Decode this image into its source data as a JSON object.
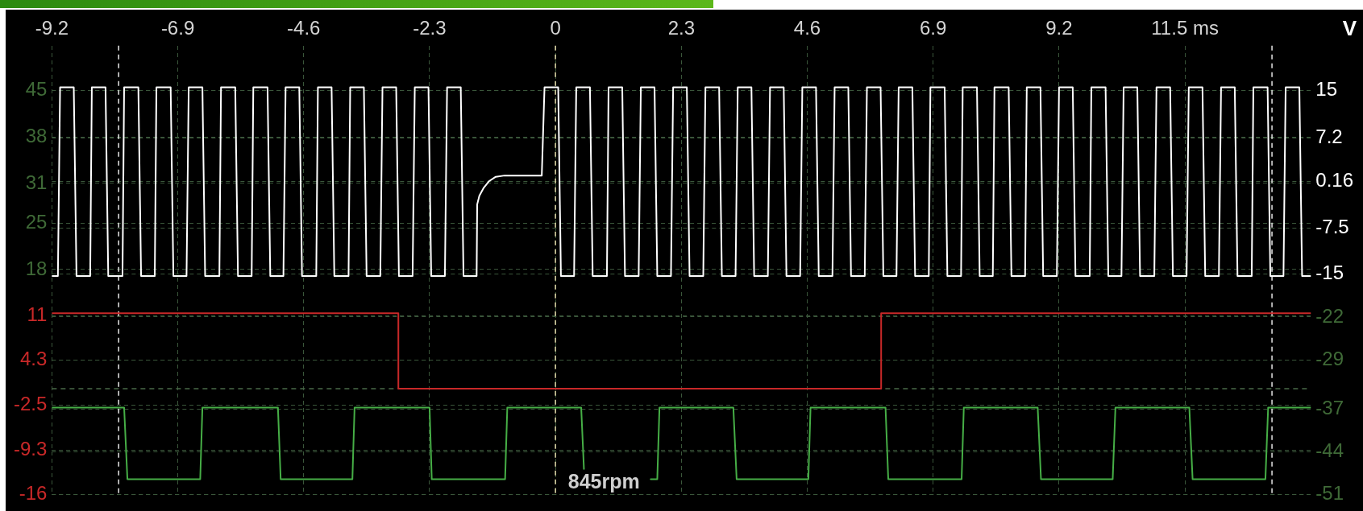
{
  "chart_data": {
    "type": "line",
    "xlim": [
      -9.2,
      13.8
    ],
    "xticks": [
      -9.2,
      -6.9,
      -4.6,
      -2.3,
      0,
      2.3,
      4.6,
      6.9,
      9.2,
      {
        "value": 11.5,
        "label": "11.5 ms"
      }
    ],
    "ylim": [
      -16,
      51.8
    ],
    "yticks": [
      -16,
      -9.3,
      -2.5,
      4.3,
      11,
      18,
      25,
      31,
      38,
      45
    ],
    "y2lim": [
      -51,
      22.3
    ],
    "y2ticks": [
      -51,
      -44,
      -37,
      -29,
      -22,
      -15,
      -7.5,
      0.16,
      7.2,
      15
    ],
    "y2label": "V",
    "grid": true,
    "ref_lines": [
      {
        "axis": "x",
        "value": -7.98,
        "color": "#e6e6e6",
        "line_style": "dashed"
      },
      {
        "axis": "x",
        "value": 0,
        "color": "#e0d8a8",
        "line_style": "dashed"
      },
      {
        "axis": "x",
        "value": 13.09,
        "color": "#e6e6e6",
        "line_style": "dashed"
      },
      {
        "axis": "y",
        "value": 0,
        "color": "#4a6a48",
        "line_style": "dashed"
      }
    ],
    "annotations": [
      "845rpm"
    ],
    "series": [
      {
        "color": "#ffffff",
        "axis": "y2",
        "x": [
          -9.2,
          -9.09,
          -9.05,
          -8.8,
          -8.75,
          -8.5,
          -8.47,
          -8.22,
          -8.17,
          -7.91,
          -7.88,
          -7.62,
          -7.57,
          -7.32,
          -7.29,
          -7.03,
          -6.98,
          -6.74,
          -6.7,
          -6.45,
          -6.4,
          -6.14,
          -6.11,
          -5.85,
          -5.8,
          -5.55,
          -5.52,
          -5.26,
          -5.21,
          -4.97,
          -4.93,
          -4.68,
          -4.63,
          -4.37,
          -4.34,
          -4.09,
          -4.04,
          -3.78,
          -3.75,
          -3.5,
          -3.45,
          -3.2,
          -3.16,
          -2.91,
          -2.86,
          -2.61,
          -2.57,
          -2.32,
          -2.27,
          -2.02,
          -1.98,
          -1.73,
          -1.68,
          -1.44,
          -1.43,
          -1.39,
          -1.31,
          -1.21,
          -1.09,
          -0.93,
          -0.25,
          -0.2,
          0.05,
          0.1,
          0.34,
          0.38,
          0.63,
          0.68,
          0.94,
          0.97,
          1.22,
          1.27,
          1.52,
          1.56,
          1.81,
          1.86,
          2.11,
          2.15,
          2.4,
          2.45,
          2.7,
          2.74,
          2.99,
          3.04,
          3.29,
          3.33,
          3.58,
          3.63,
          3.88,
          3.92,
          4.17,
          4.22,
          4.47,
          4.51,
          4.76,
          4.81,
          5.06,
          5.1,
          5.35,
          5.4,
          5.65,
          5.69,
          5.94,
          5.99,
          6.23,
          6.27,
          6.52,
          6.57,
          6.82,
          6.85,
          7.11,
          7.16,
          7.41,
          7.44,
          7.7,
          7.75,
          7.99,
          8.02,
          8.28,
          8.33,
          8.58,
          8.61,
          8.86,
          8.91,
          9.16,
          9.2,
          9.45,
          9.5,
          9.76,
          9.79,
          10.05,
          10.1,
          10.34,
          10.38,
          10.63,
          10.68,
          10.94,
          10.98,
          11.23,
          11.28,
          11.53,
          11.57,
          11.82,
          11.87,
          12.12,
          12.16,
          12.41,
          12.46,
          12.72,
          12.75,
          13.01,
          13.06,
          13.3,
          13.34,
          13.59,
          13.64,
          13.8
        ],
        "values": [
          -15.3,
          -15.3,
          15.5,
          15.5,
          -15.3,
          -15.3,
          15.5,
          15.5,
          -15.3,
          -15.3,
          15.5,
          15.5,
          -15.3,
          -15.3,
          15.5,
          15.5,
          -15.3,
          -15.3,
          15.5,
          15.5,
          -15.3,
          -15.3,
          15.5,
          15.5,
          -15.3,
          -15.3,
          15.5,
          15.5,
          -15.3,
          -15.3,
          15.5,
          15.5,
          -15.3,
          -15.3,
          15.5,
          15.5,
          -15.3,
          -15.3,
          15.5,
          15.5,
          -15.3,
          -15.3,
          15.5,
          15.5,
          -15.3,
          -15.3,
          15.5,
          15.5,
          -15.3,
          -15.3,
          15.5,
          15.5,
          -15.3,
          -15.3,
          -3.6,
          -2.2,
          -0.9,
          0.2,
          0.9,
          1.1,
          1.1,
          15.5,
          15.5,
          -15.3,
          -15.3,
          15.5,
          15.5,
          -15.3,
          -15.3,
          15.5,
          15.5,
          -15.3,
          -15.3,
          15.5,
          15.5,
          -15.3,
          -15.3,
          15.5,
          15.5,
          -15.3,
          -15.3,
          15.5,
          15.5,
          -15.3,
          -15.3,
          15.5,
          15.5,
          -15.3,
          -15.3,
          15.5,
          15.5,
          -15.3,
          -15.3,
          15.5,
          15.5,
          -15.3,
          -15.3,
          15.5,
          15.5,
          -15.3,
          -15.3,
          15.5,
          15.5,
          -15.3,
          -15.3,
          15.5,
          15.5,
          -15.3,
          -15.3,
          15.5,
          15.5,
          -15.3,
          -15.3,
          15.5,
          15.5,
          -15.3,
          -15.3,
          15.5,
          15.5,
          -15.3,
          -15.3,
          15.5,
          15.5,
          -15.3,
          -15.3,
          15.5,
          15.5,
          -15.3,
          -15.3,
          15.5,
          15.5,
          -15.3,
          -15.3,
          15.5,
          15.5,
          -15.3,
          -15.3,
          15.5,
          15.5,
          -15.3,
          -15.3,
          15.5,
          15.5,
          -15.3,
          -15.3,
          15.5,
          15.5,
          -15.3,
          -15.3,
          15.5,
          15.5,
          -15.3,
          -15.3,
          15.5,
          15.5,
          -15.3,
          -15.3
        ]
      },
      {
        "color": "#c82828",
        "x": [
          -9.2,
          -2.87,
          -2.87,
          5.95,
          5.95,
          13.8
        ],
        "values": [
          11.4,
          11.4,
          0,
          0,
          11.4,
          11.4
        ]
      },
      {
        "color": "#46ae46",
        "axis": "y2",
        "x": [
          -9.2,
          -7.88,
          -7.82,
          -6.49,
          -6.45,
          -5.07,
          -5.02,
          -3.71,
          -3.67,
          -2.3,
          -2.26,
          -0.92,
          -0.88,
          0.47,
          0.52,
          0.9,
          1.74,
          1.86,
          1.9,
          3.25,
          3.31,
          4.62,
          4.66,
          6.03,
          6.08,
          7.42,
          7.46,
          8.81,
          8.87,
          10.18,
          10.23,
          11.58,
          11.64,
          12.97,
          13.02,
          13.8
        ],
        "values": [
          -36.8,
          -36.8,
          -48.5,
          -48.5,
          -36.8,
          -36.8,
          -48.5,
          -48.5,
          -36.8,
          -36.8,
          -48.5,
          -48.5,
          -36.8,
          -36.8,
          -46.8,
          null,
          -48.5,
          -48.5,
          -36.8,
          -36.8,
          -48.5,
          -48.5,
          -36.8,
          -36.8,
          -48.5,
          -48.5,
          -36.8,
          -36.8,
          -48.5,
          -48.5,
          -36.8,
          -36.8,
          -48.5,
          -48.5,
          -36.8,
          -36.8
        ]
      }
    ]
  }
}
